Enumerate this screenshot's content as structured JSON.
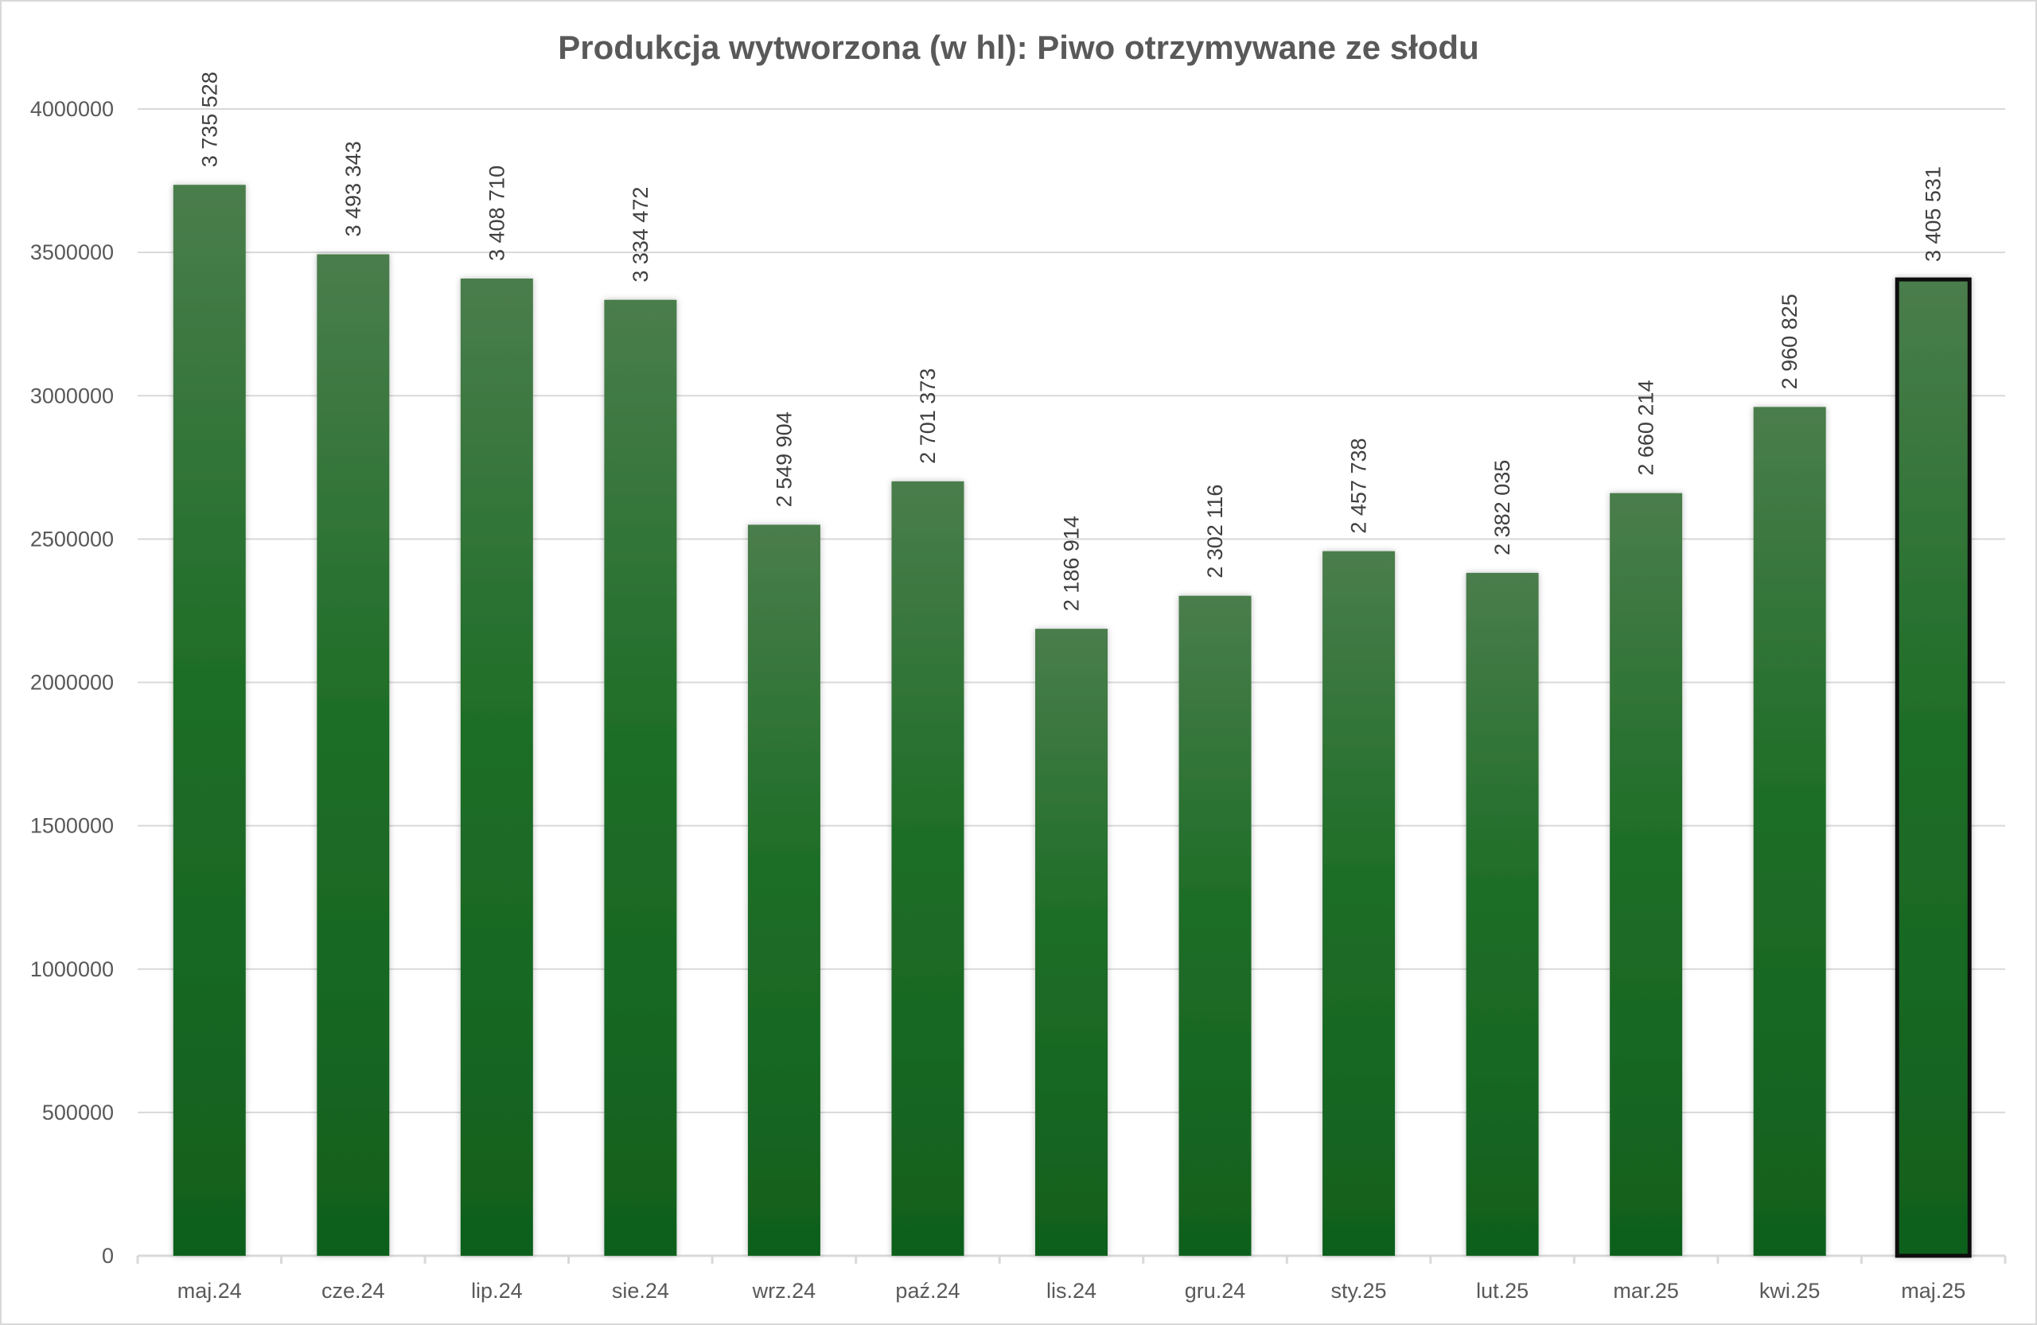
{
  "chart_data": {
    "type": "bar",
    "title": "Produkcja wytworzona (w hl): Piwo otrzymywane ze słodu",
    "xlabel": "",
    "ylabel": "",
    "ylim": [
      0,
      4000000
    ],
    "yticks": [
      0,
      500000,
      1000000,
      1500000,
      2000000,
      2500000,
      3000000,
      3500000,
      4000000
    ],
    "grid": true,
    "categories": [
      "maj.24",
      "cze.24",
      "lip.24",
      "sie.24",
      "wrz.24",
      "paź.24",
      "lis.24",
      "gru.24",
      "sty.25",
      "lut.25",
      "mar.25",
      "kwi.25",
      "maj.25"
    ],
    "values": [
      3735528,
      3493343,
      3408710,
      3334472,
      2549904,
      2701373,
      2186914,
      2302116,
      2457738,
      2382035,
      2660214,
      2960825,
      3405531
    ],
    "data_labels": [
      "3 735 528",
      "3 493 343",
      "3 408 710",
      "3 334 472",
      "2 549 904",
      "2 701 373",
      "2 186 914",
      "2 302 116",
      "2 457 738",
      "2 382 035",
      "2 660 214",
      "2 960 825",
      "3 405 531"
    ],
    "highlighted_category": "maj.25",
    "colors": {
      "bar_top": "#4a7d4c",
      "bar_bottom": "#10601d",
      "highlight_border": "#111111",
      "grid": "#d9d9d9",
      "text": "#595959",
      "title": "#595959"
    }
  }
}
